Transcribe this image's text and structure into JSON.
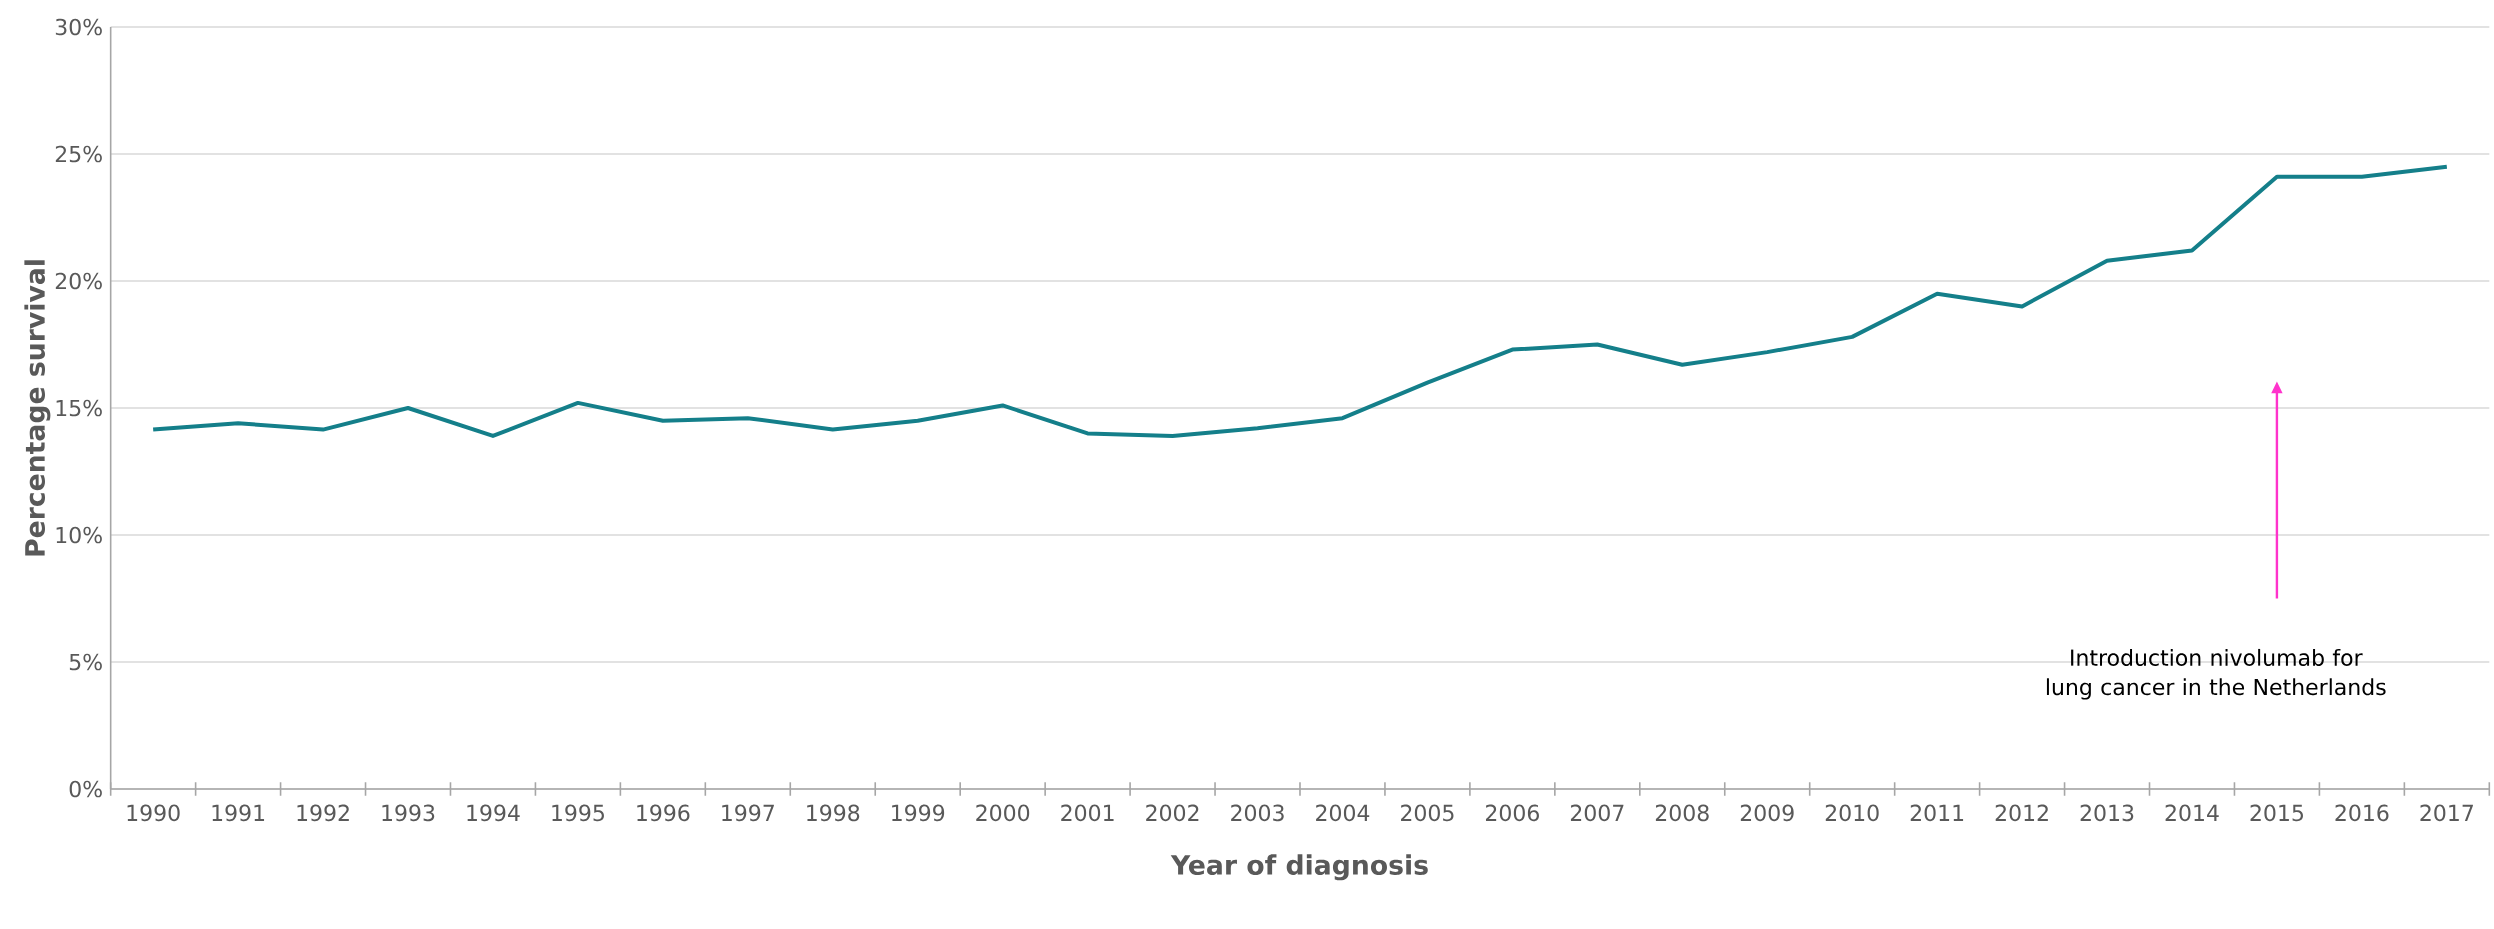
{
  "chart_data": {
    "type": "line",
    "xlabel": "Year of diagnosis",
    "ylabel": "Percentage survival",
    "categories": [
      "1990",
      "1991",
      "1992",
      "1993",
      "1994",
      "1995",
      "1996",
      "1997",
      "1998",
      "1999",
      "2000",
      "2001",
      "2002",
      "2003",
      "2004",
      "2005",
      "2006",
      "2007",
      "2008",
      "2009",
      "2010",
      "2011",
      "2012",
      "2013",
      "2014",
      "2015",
      "2016",
      "2017"
    ],
    "series": [
      {
        "color": "#147f8a",
        "values": [
          14.15,
          14.4,
          14.15,
          15.0,
          13.9,
          15.2,
          14.5,
          14.6,
          14.15,
          14.5,
          15.1,
          14.0,
          13.9,
          14.2,
          14.6,
          16.0,
          17.3,
          17.5,
          16.7,
          17.2,
          17.8,
          19.5,
          19.0,
          20.8,
          21.2,
          24.1,
          24.1,
          24.5
        ]
      }
    ],
    "ylim": [
      0,
      30
    ],
    "yticks": [
      {
        "value": 0,
        "label": "0%"
      },
      {
        "value": 5,
        "label": "5%"
      },
      {
        "value": 10,
        "label": "10%"
      },
      {
        "value": 15,
        "label": "15%"
      },
      {
        "value": 20,
        "label": "20%"
      },
      {
        "value": 25,
        "label": "25%"
      },
      {
        "value": 30,
        "label": "30%"
      }
    ],
    "grid": "y",
    "marker": "none",
    "line_style": "solid",
    "annotations": [
      "Introduction nivolumab for lung cancer in the Netherlands"
    ]
  }
}
